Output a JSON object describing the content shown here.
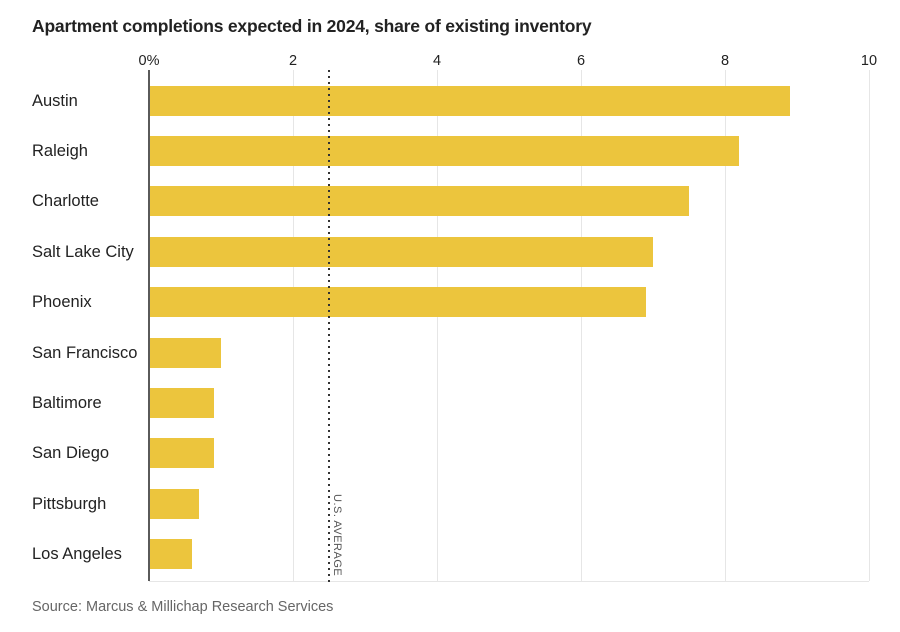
{
  "header": {
    "title": "Apartment completions expected in 2024, share of existing inventory"
  },
  "footer": {
    "source": "Source: Marcus & Millichap Research Services"
  },
  "colors": {
    "bar": "#ECC53D",
    "zero_line": "#5a5a5a",
    "gridline": "#e6e6e6",
    "reference_line": "#333333",
    "title_text": "#222222",
    "label_text": "#222222",
    "source_text": "#666666",
    "background": "#ffffff"
  },
  "chart_data": {
    "type": "bar",
    "orientation": "horizontal",
    "title": "Apartment completions expected in 2024, share of existing inventory",
    "categories": [
      "Austin",
      "Raleigh",
      "Charlotte",
      "Salt Lake City",
      "Phoenix",
      "San Francisco",
      "Baltimore",
      "San Diego",
      "Pittsburgh",
      "Los Angeles"
    ],
    "values": [
      8.9,
      8.2,
      7.5,
      7.0,
      6.9,
      1.0,
      0.9,
      0.9,
      0.7,
      0.6
    ],
    "unit": "%",
    "xlabel": "",
    "ylabel": "",
    "xlim": [
      0,
      10
    ],
    "x_tick_labels": [
      "0%",
      "2",
      "4",
      "6",
      "8",
      "10"
    ],
    "x_tick_values": [
      0,
      2,
      4,
      6,
      8,
      10
    ],
    "grid": true,
    "axis_position": "top",
    "legend": null,
    "reference_line": {
      "value": 2.5,
      "label": "U.S. AVERAGE",
      "style": "dotted"
    },
    "bar_color": "#ECC53D",
    "source": "Source: Marcus & Millichap Research Services"
  }
}
